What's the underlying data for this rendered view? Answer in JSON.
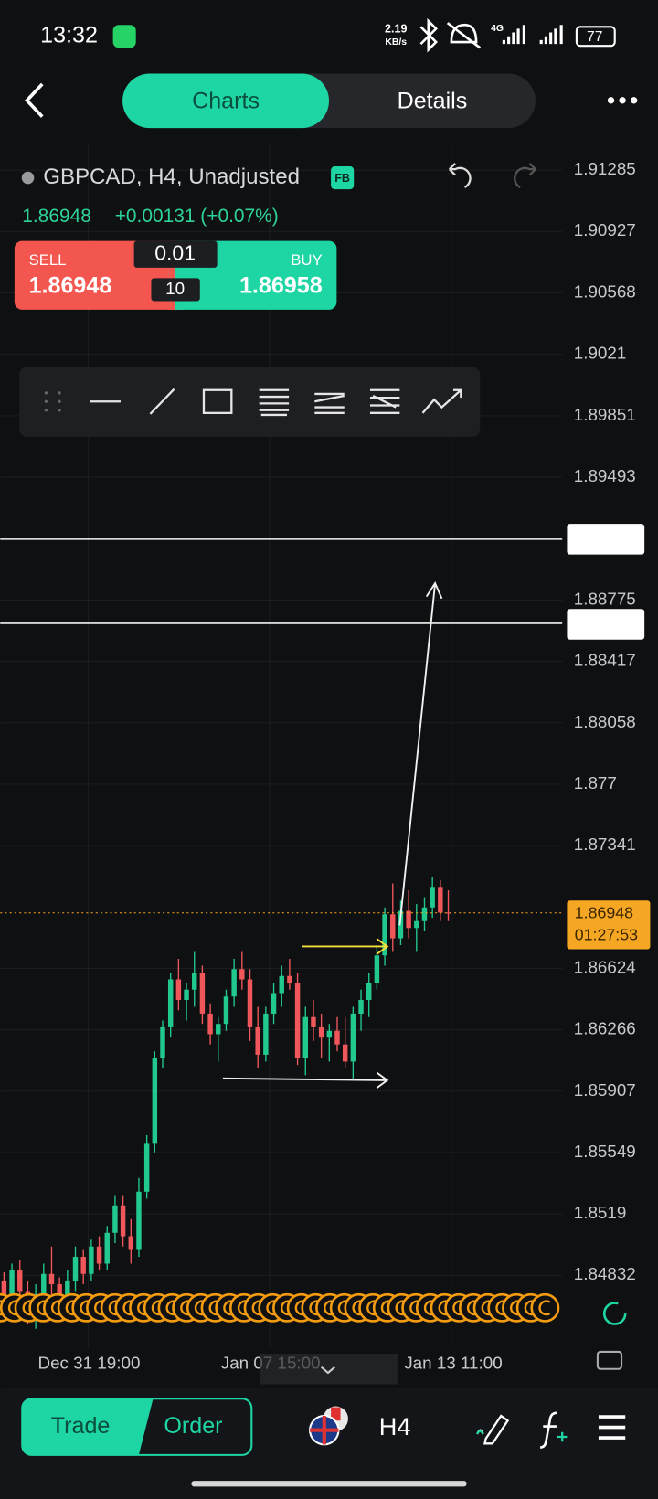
{
  "status_bar": {
    "time": "13:32",
    "speed": "2.19",
    "speed_unit": "KB/s",
    "network": "4G",
    "battery": "77"
  },
  "header": {
    "tabs": [
      "Charts",
      "Details"
    ]
  },
  "symbol": {
    "title": "GBPCAD, H4, Unadjusted",
    "badge": "FB",
    "price": "1.86948",
    "change": "+0.00131 (+0.07%)"
  },
  "order_panel": {
    "sell_label": "SELL",
    "sell_price": "1.86948",
    "lot": "0.01",
    "spread": "10",
    "buy_label": "BUY",
    "buy_price": "1.86958"
  },
  "chart": {
    "type": "candlestick",
    "ylim": [
      1.84832,
      1.91285
    ],
    "yticks": [
      1.91285,
      1.90927,
      1.90568,
      1.9021,
      1.89851,
      1.89493,
      1.88775,
      1.88417,
      1.88058,
      1.877,
      1.87341,
      1.86624,
      1.86266,
      1.85907,
      1.85549,
      1.8519,
      1.84832
    ],
    "up_color": "#22c98f",
    "down_color": "#f0575a",
    "candles": [
      [
        1.848,
        1.8485,
        1.846,
        1.847
      ],
      [
        1.847,
        1.849,
        1.8462,
        1.8486
      ],
      [
        1.8486,
        1.8492,
        1.8468,
        1.8474
      ],
      [
        1.8474,
        1.848,
        1.8455,
        1.8462
      ],
      [
        1.8462,
        1.8478,
        1.8452,
        1.8472
      ],
      [
        1.8472,
        1.849,
        1.8466,
        1.8484
      ],
      [
        1.8484,
        1.85,
        1.847,
        1.8478
      ],
      [
        1.8478,
        1.8482,
        1.8458,
        1.8466
      ],
      [
        1.8466,
        1.8486,
        1.846,
        1.848
      ],
      [
        1.848,
        1.85,
        1.8474,
        1.8494
      ],
      [
        1.8494,
        1.8498,
        1.8478,
        1.8484
      ],
      [
        1.8484,
        1.8504,
        1.848,
        1.85
      ],
      [
        1.85,
        1.8506,
        1.8486,
        1.849
      ],
      [
        1.849,
        1.8512,
        1.8486,
        1.8508
      ],
      [
        1.8508,
        1.853,
        1.8502,
        1.8524
      ],
      [
        1.8524,
        1.853,
        1.85,
        1.8506
      ],
      [
        1.8506,
        1.8516,
        1.849,
        1.8498
      ],
      [
        1.8498,
        1.854,
        1.8494,
        1.8532
      ],
      [
        1.8532,
        1.8565,
        1.8528,
        1.856
      ],
      [
        1.856,
        1.8614,
        1.8555,
        1.861
      ],
      [
        1.861,
        1.8632,
        1.8604,
        1.8628
      ],
      [
        1.8628,
        1.866,
        1.8622,
        1.8656
      ],
      [
        1.8656,
        1.8668,
        1.8638,
        1.8644
      ],
      [
        1.8644,
        1.8654,
        1.8632,
        1.865
      ],
      [
        1.865,
        1.8672,
        1.864,
        1.866
      ],
      [
        1.866,
        1.8664,
        1.863,
        1.8636
      ],
      [
        1.8636,
        1.8642,
        1.8618,
        1.8624
      ],
      [
        1.8624,
        1.8634,
        1.8608,
        1.863
      ],
      [
        1.863,
        1.865,
        1.8626,
        1.8646
      ],
      [
        1.8646,
        1.8668,
        1.864,
        1.8662
      ],
      [
        1.8662,
        1.8672,
        1.865,
        1.8656
      ],
      [
        1.8656,
        1.8662,
        1.862,
        1.8628
      ],
      [
        1.8628,
        1.864,
        1.8604,
        1.8612
      ],
      [
        1.8612,
        1.864,
        1.8608,
        1.8636
      ],
      [
        1.8636,
        1.8654,
        1.863,
        1.8648
      ],
      [
        1.8648,
        1.8664,
        1.864,
        1.8658
      ],
      [
        1.8658,
        1.8668,
        1.865,
        1.8654
      ],
      [
        1.8654,
        1.866,
        1.8606,
        1.861
      ],
      [
        1.861,
        1.864,
        1.86,
        1.8634
      ],
      [
        1.8634,
        1.8644,
        1.862,
        1.8628
      ],
      [
        1.8628,
        1.8636,
        1.861,
        1.8622
      ],
      [
        1.8622,
        1.863,
        1.8608,
        1.8626
      ],
      [
        1.8626,
        1.8634,
        1.8614,
        1.8618
      ],
      [
        1.8618,
        1.8634,
        1.8604,
        1.8608
      ],
      [
        1.8608,
        1.864,
        1.8598,
        1.8636
      ],
      [
        1.8636,
        1.865,
        1.8626,
        1.8644
      ],
      [
        1.8644,
        1.866,
        1.8634,
        1.8654
      ],
      [
        1.8654,
        1.8676,
        1.865,
        1.867
      ],
      [
        1.867,
        1.8698,
        1.8664,
        1.8694
      ],
      [
        1.8694,
        1.8712,
        1.8672,
        1.868
      ],
      [
        1.868,
        1.8702,
        1.8676,
        1.8696
      ],
      [
        1.8696,
        1.8708,
        1.868,
        1.8686
      ],
      [
        1.8686,
        1.87,
        1.8672,
        1.869
      ],
      [
        1.869,
        1.8704,
        1.8684,
        1.8698
      ],
      [
        1.8698,
        1.8716,
        1.8692,
        1.871
      ],
      [
        1.871,
        1.8714,
        1.869,
        1.8695
      ],
      [
        1.8695,
        1.8708,
        1.869,
        1.86948
      ]
    ],
    "current_price": 1.86948,
    "current_label": "1.86948",
    "countdown": "01:27:53",
    "x_labels": [
      "Dec 31 19:00",
      "Jan 07 15:00",
      "Jan 13 11:00"
    ]
  },
  "bottom_bar": {
    "trade": "Trade",
    "order": "Order",
    "timeframe": "H4"
  }
}
